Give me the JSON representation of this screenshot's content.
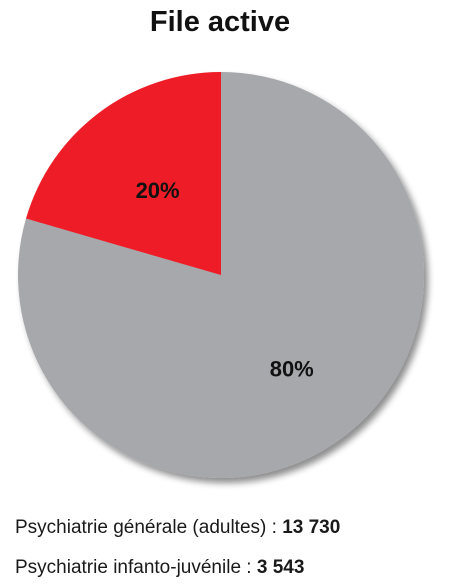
{
  "chart_data": {
    "type": "pie",
    "title": "File active",
    "slices": [
      {
        "label": "Psychiatrie générale (adultes)",
        "value": 13730,
        "percent_label": "80%",
        "color": "#a7a8ab"
      },
      {
        "label": "Psychiatrie infanto-juvénile",
        "value": 3543,
        "percent_label": "20%",
        "color": "#ee1c25"
      }
    ]
  },
  "legend": [
    {
      "text": "Psychiatrie générale (adultes) : ",
      "value": "13 730"
    },
    {
      "text": "Psychiatrie infanto-juvénile : ",
      "value": "3 543"
    }
  ]
}
